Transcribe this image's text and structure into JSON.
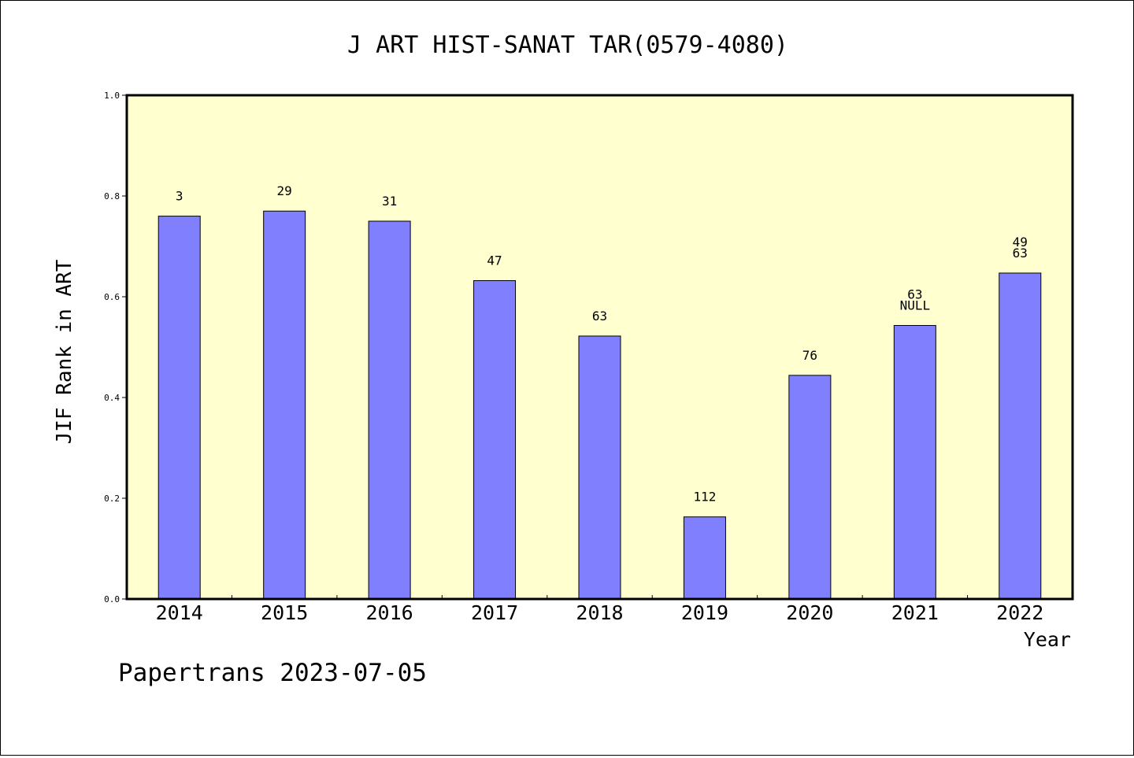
{
  "chart_data": {
    "type": "bar",
    "title": "J ART HIST-SANAT TAR(0579-4080)",
    "xlabel": "Year",
    "ylabel": "JIF Rank in ART",
    "ylim": [
      0,
      1.0
    ],
    "yticks": [
      "0.0",
      "0.2",
      "0.4",
      "0.6",
      "0.8",
      "1.0"
    ],
    "categories": [
      "2014",
      "2015",
      "2016",
      "2017",
      "2018",
      "2019",
      "2020",
      "2021",
      "2022"
    ],
    "values": [
      0.76,
      0.77,
      0.75,
      0.632,
      0.522,
      0.163,
      0.444,
      0.543,
      0.647
    ],
    "bar_labels": [
      [
        "3"
      ],
      [
        "29"
      ],
      [
        "31"
      ],
      [
        "47"
      ],
      [
        "63"
      ],
      [
        "112"
      ],
      [
        "76"
      ],
      [
        "63",
        "NULL"
      ],
      [
        "49",
        "63"
      ]
    ],
    "grid": false,
    "colors": {
      "bar": "#8080ff",
      "plot_bg": "#ffffd0",
      "axis": "#000000"
    }
  },
  "footer": "Papertrans 2023-07-05"
}
